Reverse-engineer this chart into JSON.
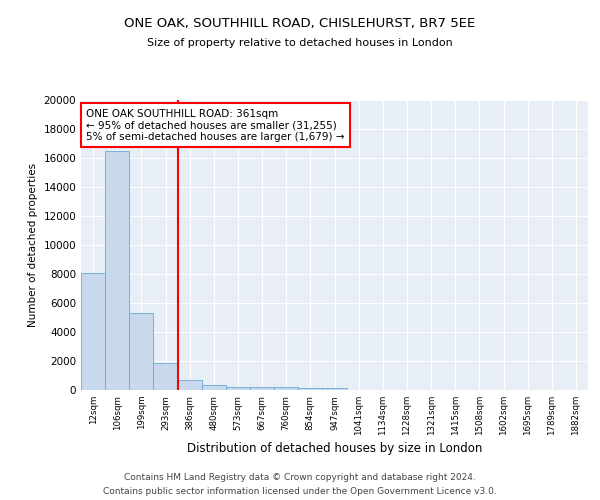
{
  "title1": "ONE OAK, SOUTHHILL ROAD, CHISLEHURST, BR7 5EE",
  "title2": "Size of property relative to detached houses in London",
  "xlabel": "Distribution of detached houses by size in London",
  "ylabel": "Number of detached properties",
  "bin_labels": [
    "12sqm",
    "106sqm",
    "199sqm",
    "293sqm",
    "386sqm",
    "480sqm",
    "573sqm",
    "667sqm",
    "760sqm",
    "854sqm",
    "947sqm",
    "1041sqm",
    "1134sqm",
    "1228sqm",
    "1321sqm",
    "1415sqm",
    "1508sqm",
    "1602sqm",
    "1695sqm",
    "1789sqm",
    "1882sqm"
  ],
  "bar_heights": [
    8100,
    16500,
    5300,
    1850,
    700,
    320,
    230,
    200,
    175,
    150,
    130,
    0,
    0,
    0,
    0,
    0,
    0,
    0,
    0,
    0,
    0
  ],
  "bar_color": "#c8d9ee",
  "bar_edge_color": "#6aaad4",
  "background_color": "#e8eef6",
  "red_line_index": 4,
  "annotation_text": "ONE OAK SOUTHHILL ROAD: 361sqm\n← 95% of detached houses are smaller (31,255)\n5% of semi-detached houses are larger (1,679) →",
  "annotation_box_color": "white",
  "annotation_box_edge": "red",
  "footer_line1": "Contains HM Land Registry data © Crown copyright and database right 2024.",
  "footer_line2": "Contains public sector information licensed under the Open Government Licence v3.0.",
  "ylim": [
    0,
    20000
  ],
  "yticks": [
    0,
    2000,
    4000,
    6000,
    8000,
    10000,
    12000,
    14000,
    16000,
    18000,
    20000
  ]
}
